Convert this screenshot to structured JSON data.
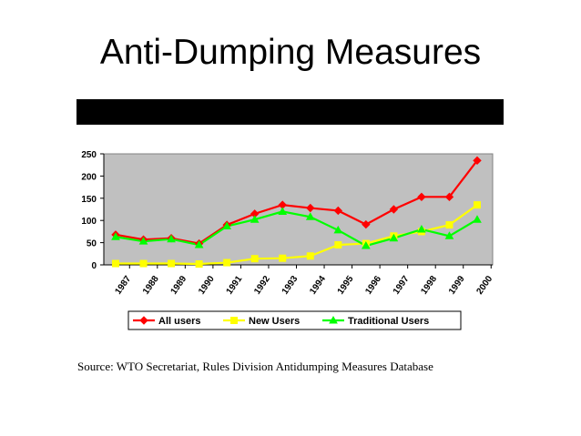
{
  "slide": {
    "title": "Anti-Dumping Measures",
    "source": "Source: WTO Secretariat, Rules Division Antidumping Measures Database"
  },
  "chart_data": {
    "type": "line",
    "title": "",
    "xlabel": "",
    "ylabel": "",
    "categories": [
      "1987",
      "1988",
      "1989",
      "1990",
      "1991",
      "1992",
      "1993",
      "1994",
      "1995",
      "1996",
      "1997",
      "1998",
      "1999",
      "2000"
    ],
    "ylim": [
      0,
      250
    ],
    "yticks": [
      0,
      50,
      100,
      150,
      200,
      250
    ],
    "grid": false,
    "plot_background": "#c0c0c0",
    "legend_position": "bottom",
    "series": [
      {
        "name": "All users",
        "color": "#ff0000",
        "marker": "diamond",
        "values": [
          68,
          57,
          60,
          48,
          90,
          115,
          135,
          128,
          122,
          91,
          125,
          153,
          153,
          235
        ]
      },
      {
        "name": "New Users",
        "color": "#ffff00",
        "marker": "square",
        "values": [
          3,
          3,
          3,
          2,
          5,
          14,
          15,
          20,
          45,
          48,
          65,
          75,
          90,
          135
        ]
      },
      {
        "name": "Traditional Users",
        "color": "#00ff00",
        "marker": "triangle",
        "values": [
          63,
          53,
          58,
          45,
          87,
          102,
          120,
          108,
          78,
          43,
          60,
          80,
          65,
          102
        ]
      }
    ]
  }
}
